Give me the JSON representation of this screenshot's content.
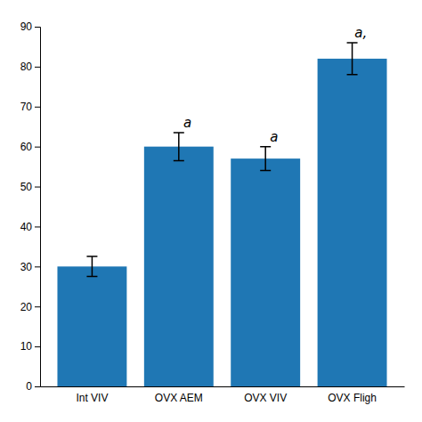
{
  "chart_data": {
    "type": "bar",
    "categories": [
      "Int VIV",
      "OVX AEM",
      "OVX VIV",
      "OVX Fligh"
    ],
    "values": [
      30.0,
      60.0,
      57.0,
      82.0
    ],
    "errors": [
      2.5,
      3.5,
      3.0,
      4.0
    ],
    "annotations": [
      null,
      "a",
      "a",
      "a,"
    ],
    "ylim": [
      0,
      90
    ],
    "yticks": [
      0,
      10,
      20,
      30,
      40,
      50,
      60,
      70,
      80,
      90
    ]
  }
}
